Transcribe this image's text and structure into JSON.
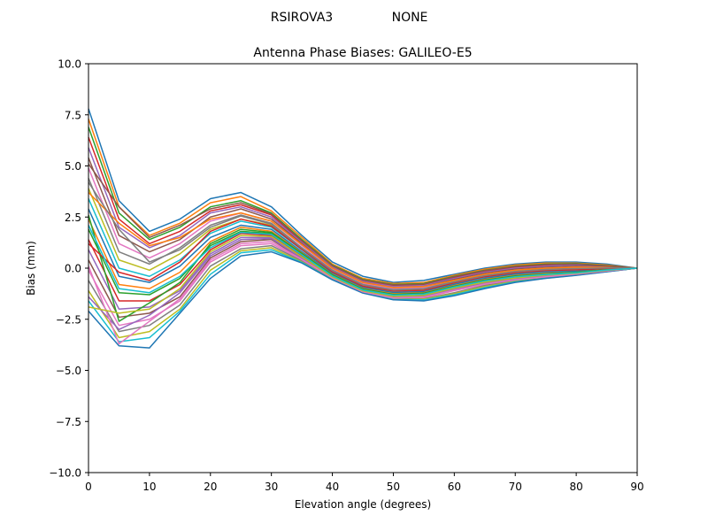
{
  "figure": {
    "suptitle_station": "RSIROVA3",
    "suptitle_radome": "NONE"
  },
  "chart_data": {
    "type": "line",
    "title": "Antenna Phase Biases: GALILEO-E5",
    "xlabel": "Elevation angle (degrees)",
    "ylabel": "Bias (mm)",
    "xlim": [
      0,
      90
    ],
    "ylim": [
      -10,
      10
    ],
    "xticks": [
      0,
      10,
      20,
      30,
      40,
      50,
      60,
      70,
      80,
      90
    ],
    "yticks": [
      -10.0,
      -7.5,
      -5.0,
      -2.5,
      0.0,
      2.5,
      5.0,
      7.5,
      10.0
    ],
    "xtick_labels": [
      "0",
      "10",
      "20",
      "30",
      "40",
      "50",
      "60",
      "70",
      "80",
      "90"
    ],
    "ytick_labels": [
      "−10.0",
      "−7.5",
      "−5.0",
      "−2.5",
      "0.0",
      "2.5",
      "5.0",
      "7.5",
      "10.0"
    ],
    "grid": false,
    "legend": "none",
    "colors": [
      "#1f77b4",
      "#ff7f0e",
      "#2ca02c",
      "#d62728",
      "#9467bd",
      "#8c564b",
      "#e377c2",
      "#7f7f7f",
      "#bcbd22",
      "#17becf"
    ],
    "x": [
      0,
      5,
      10,
      15,
      20,
      25,
      30,
      35,
      40,
      45,
      50,
      55,
      60,
      65,
      70,
      75,
      80,
      85,
      90
    ],
    "series": [
      {
        "values": [
          7.8,
          3.3,
          1.8,
          2.4,
          3.4,
          3.7,
          3.0,
          1.6,
          0.3,
          -0.4,
          -0.7,
          -0.6,
          -0.3,
          0.0,
          0.2,
          0.3,
          0.3,
          0.2,
          0.0
        ]
      },
      {
        "values": [
          7.3,
          3.0,
          1.6,
          2.2,
          3.2,
          3.5,
          2.8,
          1.5,
          0.2,
          -0.5,
          -0.75,
          -0.7,
          -0.35,
          -0.05,
          0.15,
          0.25,
          0.25,
          0.15,
          0.0
        ]
      },
      {
        "values": [
          6.9,
          2.7,
          1.4,
          2.0,
          3.0,
          3.3,
          2.7,
          1.4,
          0.15,
          -0.55,
          -0.8,
          -0.75,
          -0.4,
          -0.1,
          0.1,
          0.2,
          0.22,
          0.12,
          0.0
        ]
      },
      {
        "values": [
          6.4,
          2.4,
          1.2,
          1.8,
          2.8,
          3.1,
          2.6,
          1.3,
          0.1,
          -0.6,
          -0.85,
          -0.8,
          -0.45,
          -0.15,
          0.05,
          0.15,
          0.18,
          0.1,
          0.0
        ]
      },
      {
        "values": [
          5.9,
          2.0,
          1.0,
          1.6,
          2.7,
          3.0,
          2.5,
          1.25,
          0.05,
          -0.65,
          -0.9,
          -0.85,
          -0.5,
          -0.2,
          0.0,
          0.1,
          0.15,
          0.08,
          0.0
        ]
      },
      {
        "values": [
          5.4,
          1.6,
          0.8,
          1.4,
          2.5,
          2.9,
          2.4,
          1.2,
          0.0,
          -0.7,
          -0.95,
          -0.9,
          -0.55,
          -0.25,
          -0.05,
          0.05,
          0.1,
          0.06,
          0.0
        ]
      },
      {
        "values": [
          4.9,
          1.2,
          0.5,
          1.2,
          2.3,
          2.7,
          2.3,
          1.1,
          -0.05,
          -0.75,
          -1.0,
          -0.95,
          -0.6,
          -0.3,
          -0.1,
          0.0,
          0.05,
          0.04,
          0.0
        ]
      },
      {
        "values": [
          4.4,
          0.8,
          0.2,
          1.0,
          2.1,
          2.6,
          2.2,
          1.0,
          -0.1,
          -0.8,
          -1.05,
          -1.0,
          -0.65,
          -0.35,
          -0.15,
          -0.05,
          0.0,
          0.02,
          0.0
        ]
      },
      {
        "values": [
          3.9,
          0.4,
          -0.1,
          0.7,
          1.9,
          2.4,
          2.1,
          0.95,
          -0.15,
          -0.85,
          -1.1,
          -1.05,
          -0.7,
          -0.4,
          -0.2,
          -0.1,
          -0.05,
          0.0,
          0.0
        ]
      },
      {
        "values": [
          3.4,
          0.0,
          -0.4,
          0.4,
          1.7,
          2.3,
          2.0,
          0.9,
          -0.2,
          -0.9,
          -1.15,
          -1.1,
          -0.75,
          -0.45,
          -0.25,
          -0.15,
          -0.1,
          -0.02,
          0.0
        ]
      },
      {
        "values": [
          2.9,
          -0.4,
          -0.7,
          0.1,
          1.5,
          2.1,
          1.9,
          0.8,
          -0.25,
          -0.95,
          -1.2,
          -1.15,
          -0.8,
          -0.5,
          -0.3,
          -0.2,
          -0.15,
          -0.04,
          0.0
        ]
      },
      {
        "values": [
          2.4,
          -0.8,
          -1.0,
          -0.2,
          1.3,
          2.0,
          1.8,
          0.75,
          -0.3,
          -1.0,
          -1.25,
          -1.2,
          -0.85,
          -0.55,
          -0.35,
          -0.25,
          -0.2,
          -0.06,
          0.0
        ]
      },
      {
        "values": [
          1.9,
          -1.2,
          -1.3,
          -0.5,
          1.1,
          1.8,
          1.7,
          0.7,
          -0.35,
          -1.05,
          -1.3,
          -1.25,
          -0.9,
          -0.6,
          -0.4,
          -0.3,
          -0.22,
          -0.08,
          0.0
        ]
      },
      {
        "values": [
          1.4,
          -1.6,
          -1.6,
          -0.8,
          0.9,
          1.7,
          1.6,
          0.6,
          -0.4,
          -1.1,
          -1.35,
          -1.3,
          -0.95,
          -0.65,
          -0.45,
          -0.32,
          -0.24,
          -0.1,
          0.0
        ]
      },
      {
        "values": [
          0.9,
          -2.0,
          -1.9,
          -1.1,
          0.7,
          1.5,
          1.5,
          0.5,
          -0.45,
          -1.12,
          -1.4,
          -1.35,
          -1.0,
          -0.7,
          -0.5,
          -0.35,
          -0.26,
          -0.12,
          0.0
        ]
      },
      {
        "values": [
          0.4,
          -2.4,
          -2.2,
          -1.4,
          0.5,
          1.3,
          1.4,
          0.45,
          -0.5,
          -1.15,
          -1.45,
          -1.4,
          -1.05,
          -0.75,
          -0.55,
          -0.4,
          -0.28,
          -0.14,
          0.0
        ]
      },
      {
        "values": [
          -0.1,
          -2.8,
          -2.5,
          -1.6,
          0.3,
          1.1,
          1.2,
          0.4,
          -0.5,
          -1.17,
          -1.48,
          -1.45,
          -1.1,
          -0.8,
          -0.6,
          -0.45,
          -0.3,
          -0.15,
          0.0
        ]
      },
      {
        "values": [
          -0.6,
          -3.1,
          -2.8,
          -1.8,
          0.1,
          0.95,
          1.1,
          0.35,
          -0.52,
          -1.18,
          -1.5,
          -1.5,
          -1.2,
          -0.85,
          -0.62,
          -0.47,
          -0.32,
          -0.16,
          0.0
        ]
      },
      {
        "values": [
          -1.1,
          -3.4,
          -3.1,
          -2.0,
          -0.1,
          0.85,
          1.0,
          0.3,
          -0.55,
          -1.2,
          -1.52,
          -1.52,
          -1.25,
          -0.9,
          -0.65,
          -0.48,
          -0.33,
          -0.17,
          0.0
        ]
      },
      {
        "values": [
          -1.6,
          -3.6,
          -3.4,
          -2.1,
          -0.3,
          0.75,
          0.9,
          0.28,
          -0.56,
          -1.2,
          -1.53,
          -1.55,
          -1.3,
          -0.95,
          -0.67,
          -0.49,
          -0.34,
          -0.17,
          0.0
        ]
      },
      {
        "values": [
          -2.1,
          -3.8,
          -3.9,
          -2.2,
          -0.5,
          0.6,
          0.8,
          0.25,
          -0.57,
          -1.22,
          -1.55,
          -1.6,
          -1.35,
          -1.0,
          -0.7,
          -0.5,
          -0.35,
          -0.18,
          0.0
        ]
      },
      {
        "values": [
          3.7,
          2.2,
          1.1,
          1.5,
          2.4,
          2.7,
          2.3,
          1.15,
          0.0,
          -0.7,
          -0.95,
          -0.9,
          -0.6,
          -0.3,
          -0.1,
          0.0,
          0.05,
          0.03,
          0.0
        ]
      },
      {
        "values": [
          2.6,
          -2.6,
          -1.7,
          -0.7,
          1.2,
          1.9,
          1.75,
          0.72,
          -0.32,
          -1.02,
          -1.28,
          -1.22,
          -0.88,
          -0.58,
          -0.38,
          -0.28,
          -0.2,
          -0.07,
          0.0
        ]
      },
      {
        "values": [
          1.2,
          -0.2,
          -0.6,
          0.3,
          1.8,
          2.4,
          2.05,
          0.92,
          -0.18,
          -0.88,
          -1.12,
          -1.08,
          -0.72,
          -0.42,
          -0.22,
          -0.12,
          -0.08,
          -0.01,
          0.0
        ]
      },
      {
        "values": [
          -1.4,
          -3.0,
          -2.3,
          -1.2,
          0.6,
          1.4,
          1.45,
          0.48,
          -0.46,
          -1.13,
          -1.42,
          -1.38,
          -1.02,
          -0.72,
          -0.52,
          -0.37,
          -0.27,
          -0.13,
          0.0
        ]
      },
      {
        "values": [
          5.1,
          3.0,
          1.5,
          2.1,
          2.9,
          3.2,
          2.65,
          1.35,
          0.12,
          -0.58,
          -0.82,
          -0.78,
          -0.42,
          -0.12,
          0.08,
          0.18,
          0.2,
          0.11,
          0.0
        ]
      },
      {
        "values": [
          0.1,
          -3.7,
          -2.6,
          -1.5,
          0.4,
          1.2,
          1.3,
          0.42,
          -0.48,
          -1.16,
          -1.46,
          -1.42,
          -1.08,
          -0.78,
          -0.57,
          -0.42,
          -0.29,
          -0.14,
          0.0
        ]
      },
      {
        "values": [
          4.2,
          1.9,
          0.3,
          0.9,
          2.0,
          2.55,
          2.15,
          0.98,
          -0.12,
          -0.82,
          -1.07,
          -1.02,
          -0.67,
          -0.37,
          -0.17,
          -0.07,
          -0.02,
          0.01,
          0.0
        ]
      },
      {
        "values": [
          -1.9,
          -2.2,
          -2.0,
          -1.0,
          0.8,
          1.6,
          1.55,
          0.55,
          -0.43,
          -1.11,
          -1.38,
          -1.33,
          -0.98,
          -0.68,
          -0.48,
          -0.34,
          -0.25,
          -0.11,
          0.0
        ]
      },
      {
        "values": [
          2.1,
          -1.0,
          -1.2,
          -0.4,
          1.0,
          1.75,
          1.65,
          0.65,
          -0.38,
          -1.07,
          -1.32,
          -1.27,
          -0.92,
          -0.62,
          -0.42,
          -0.31,
          -0.23,
          -0.09,
          0.0
        ]
      }
    ]
  }
}
